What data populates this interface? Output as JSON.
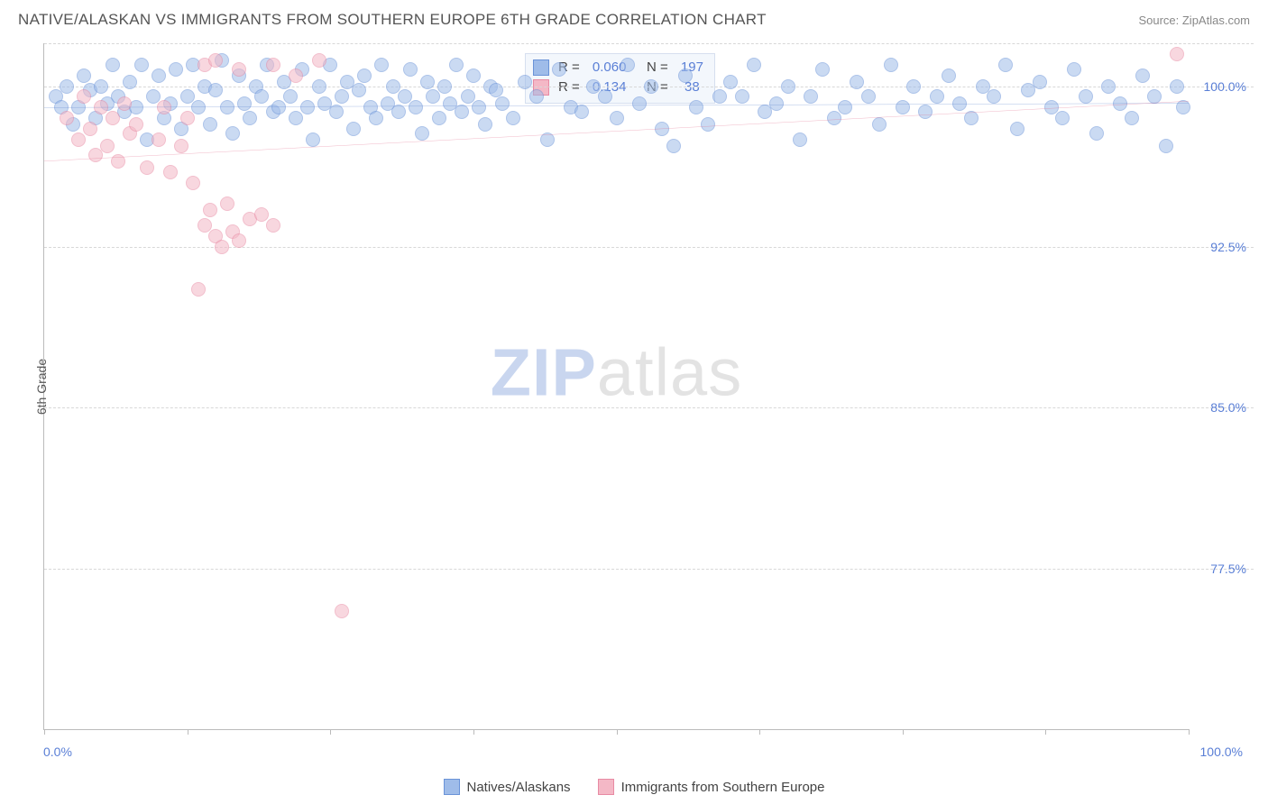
{
  "header": {
    "title": "NATIVE/ALASKAN VS IMMIGRANTS FROM SOUTHERN EUROPE 6TH GRADE CORRELATION CHART",
    "source": "Source: ZipAtlas.com"
  },
  "chart": {
    "type": "scatter",
    "y_axis_title": "6th Grade",
    "xlim": [
      0,
      100
    ],
    "ylim": [
      70,
      102
    ],
    "x_ticks": [
      0,
      12.5,
      25,
      37.5,
      50,
      62.5,
      75,
      87.5,
      100
    ],
    "y_gridlines": [
      77.5,
      85.0,
      92.5,
      100.0,
      102.0
    ],
    "y_tick_labels": [
      "77.5%",
      "85.0%",
      "92.5%",
      "100.0%"
    ],
    "x_min_label": "0.0%",
    "x_max_label": "100.0%",
    "grid_color": "#d8d8d8",
    "background_color": "#ffffff",
    "marker_radius": 8,
    "marker_opacity": 0.55,
    "marker_stroke_opacity": 0.85,
    "watermark": {
      "zip": "ZIP",
      "atlas": "atlas"
    },
    "series": [
      {
        "id": "natives",
        "label": "Natives/Alaskans",
        "color_fill": "#9fbce9",
        "color_stroke": "#6a93d8",
        "R": "0.060",
        "N": "197",
        "trend": {
          "x1": 0,
          "y1": 99.0,
          "x2": 100,
          "y2": 99.2,
          "color": "#4d78c9",
          "width": 2
        },
        "points": [
          [
            1,
            99.5
          ],
          [
            1.5,
            99
          ],
          [
            2,
            100
          ],
          [
            2.5,
            98.2
          ],
          [
            3,
            99
          ],
          [
            3.5,
            100.5
          ],
          [
            4,
            99.8
          ],
          [
            4.5,
            98.5
          ],
          [
            5,
            100
          ],
          [
            5.5,
            99.2
          ],
          [
            6,
            101
          ],
          [
            6.5,
            99.5
          ],
          [
            7,
            98.8
          ],
          [
            7.5,
            100.2
          ],
          [
            8,
            99
          ],
          [
            8.5,
            101
          ],
          [
            9,
            97.5
          ],
          [
            9.5,
            99.5
          ],
          [
            10,
            100.5
          ],
          [
            10.5,
            98.5
          ],
          [
            11,
            99.2
          ],
          [
            11.5,
            100.8
          ],
          [
            12,
            98
          ],
          [
            12.5,
            99.5
          ],
          [
            13,
            101
          ],
          [
            13.5,
            99
          ],
          [
            14,
            100
          ],
          [
            14.5,
            98.2
          ],
          [
            15,
            99.8
          ],
          [
            15.5,
            101.2
          ],
          [
            16,
            99
          ],
          [
            16.5,
            97.8
          ],
          [
            17,
            100.5
          ],
          [
            17.5,
            99.2
          ],
          [
            18,
            98.5
          ],
          [
            18.5,
            100
          ],
          [
            19,
            99.5
          ],
          [
            19.5,
            101
          ],
          [
            20,
            98.8
          ],
          [
            20.5,
            99
          ],
          [
            21,
            100.2
          ],
          [
            21.5,
            99.5
          ],
          [
            22,
            98.5
          ],
          [
            22.5,
            100.8
          ],
          [
            23,
            99
          ],
          [
            23.5,
            97.5
          ],
          [
            24,
            100
          ],
          [
            24.5,
            99.2
          ],
          [
            25,
            101
          ],
          [
            25.5,
            98.8
          ],
          [
            26,
            99.5
          ],
          [
            26.5,
            100.2
          ],
          [
            27,
            98
          ],
          [
            27.5,
            99.8
          ],
          [
            28,
            100.5
          ],
          [
            28.5,
            99
          ],
          [
            29,
            98.5
          ],
          [
            29.5,
            101
          ],
          [
            30,
            99.2
          ],
          [
            30.5,
            100
          ],
          [
            31,
            98.8
          ],
          [
            31.5,
            99.5
          ],
          [
            32,
            100.8
          ],
          [
            32.5,
            99
          ],
          [
            33,
            97.8
          ],
          [
            33.5,
            100.2
          ],
          [
            34,
            99.5
          ],
          [
            34.5,
            98.5
          ],
          [
            35,
            100
          ],
          [
            35.5,
            99.2
          ],
          [
            36,
            101
          ],
          [
            36.5,
            98.8
          ],
          [
            37,
            99.5
          ],
          [
            37.5,
            100.5
          ],
          [
            38,
            99
          ],
          [
            38.5,
            98.2
          ],
          [
            39,
            100
          ],
          [
            39.5,
            99.8
          ],
          [
            40,
            99.2
          ],
          [
            41,
            98.5
          ],
          [
            42,
            100.2
          ],
          [
            43,
            99.5
          ],
          [
            44,
            97.5
          ],
          [
            45,
            100.8
          ],
          [
            46,
            99
          ],
          [
            47,
            98.8
          ],
          [
            48,
            100
          ],
          [
            49,
            99.5
          ],
          [
            50,
            98.5
          ],
          [
            51,
            101
          ],
          [
            52,
            99.2
          ],
          [
            53,
            100
          ],
          [
            54,
            98
          ],
          [
            55,
            97.2
          ],
          [
            56,
            100.5
          ],
          [
            57,
            99
          ],
          [
            58,
            98.2
          ],
          [
            59,
            99.5
          ],
          [
            60,
            100.2
          ],
          [
            61,
            99.5
          ],
          [
            62,
            101
          ],
          [
            63,
            98.8
          ],
          [
            64,
            99.2
          ],
          [
            65,
            100
          ],
          [
            66,
            97.5
          ],
          [
            67,
            99.5
          ],
          [
            68,
            100.8
          ],
          [
            69,
            98.5
          ],
          [
            70,
            99
          ],
          [
            71,
            100.2
          ],
          [
            72,
            99.5
          ],
          [
            73,
            98.2
          ],
          [
            74,
            101
          ],
          [
            75,
            99
          ],
          [
            76,
            100
          ],
          [
            77,
            98.8
          ],
          [
            78,
            99.5
          ],
          [
            79,
            100.5
          ],
          [
            80,
            99.2
          ],
          [
            81,
            98.5
          ],
          [
            82,
            100
          ],
          [
            83,
            99.5
          ],
          [
            84,
            101
          ],
          [
            85,
            98
          ],
          [
            86,
            99.8
          ],
          [
            87,
            100.2
          ],
          [
            88,
            99
          ],
          [
            89,
            98.5
          ],
          [
            90,
            100.8
          ],
          [
            91,
            99.5
          ],
          [
            92,
            97.8
          ],
          [
            93,
            100
          ],
          [
            94,
            99.2
          ],
          [
            95,
            98.5
          ],
          [
            96,
            100.5
          ],
          [
            97,
            99.5
          ],
          [
            98,
            97.2
          ],
          [
            99,
            100
          ],
          [
            99.5,
            99
          ]
        ]
      },
      {
        "id": "immigrants",
        "label": "Immigrants from Southern Europe",
        "color_fill": "#f4b8c6",
        "color_stroke": "#e88aa3",
        "R": "0.134",
        "N": "38",
        "trend": {
          "x1": 0,
          "y1": 96.5,
          "x2": 100,
          "y2": 99.3,
          "color": "#e06a8a",
          "width": 2
        },
        "points": [
          [
            2,
            98.5
          ],
          [
            3,
            97.5
          ],
          [
            3.5,
            99.5
          ],
          [
            4,
            98
          ],
          [
            4.5,
            96.8
          ],
          [
            5,
            99
          ],
          [
            5.5,
            97.2
          ],
          [
            6,
            98.5
          ],
          [
            6.5,
            96.5
          ],
          [
            7,
            99.2
          ],
          [
            7.5,
            97.8
          ],
          [
            8,
            98.2
          ],
          [
            9,
            96.2
          ],
          [
            10,
            97.5
          ],
          [
            10.5,
            99
          ],
          [
            11,
            96
          ],
          [
            12,
            97.2
          ],
          [
            12.5,
            98.5
          ],
          [
            13,
            95.5
          ],
          [
            14,
            93.5
          ],
          [
            14.5,
            94.2
          ],
          [
            15,
            93
          ],
          [
            15.5,
            92.5
          ],
          [
            16,
            94.5
          ],
          [
            16.5,
            93.2
          ],
          [
            17,
            92.8
          ],
          [
            18,
            93.8
          ],
          [
            19,
            94
          ],
          [
            20,
            93.5
          ],
          [
            13.5,
            90.5
          ],
          [
            14,
            101
          ],
          [
            15,
            101.2
          ],
          [
            17,
            100.8
          ],
          [
            20,
            101
          ],
          [
            22,
            100.5
          ],
          [
            24,
            101.2
          ],
          [
            26,
            75.5
          ],
          [
            99,
            101.5
          ]
        ]
      }
    ]
  },
  "legend": {
    "items": [
      {
        "label": "Natives/Alaskans",
        "fill": "#9fbce9",
        "stroke": "#6a93d8"
      },
      {
        "label": "Immigrants from Southern Europe",
        "fill": "#f4b8c6",
        "stroke": "#e88aa3"
      }
    ]
  }
}
